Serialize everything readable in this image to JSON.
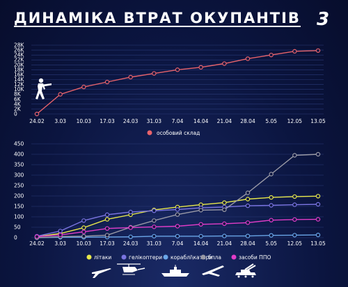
{
  "title": "ДИНАМІКА ВТРАТ ОКУПАНТІВ",
  "logo": "3",
  "colors": {
    "background": "#0b1540",
    "personnel": "#e8636b",
    "aircraft": "#e8e84a",
    "helicopters": "#7a74e0",
    "boats": "#6aa6e8",
    "drones": "#9a9aa6",
    "air_defense": "#e23cc8"
  },
  "chart_data": [
    {
      "type": "line",
      "x": [
        "24.02",
        "3.03",
        "10.03",
        "17.03",
        "24.03",
        "31.03",
        "7.04",
        "14.04",
        "21.04",
        "28.04",
        "5.05",
        "12.05",
        "13.05"
      ],
      "ylim": [
        0,
        28000
      ],
      "yticks": [
        "0",
        "2K",
        "4K",
        "6K",
        "8K",
        "10K",
        "12K",
        "14K",
        "16K",
        "18K",
        "20K",
        "22K",
        "24K",
        "26K",
        "28K"
      ],
      "series": [
        {
          "name": "особовий склад",
          "color": "#e8636b",
          "values": [
            0,
            8000,
            11000,
            13000,
            15000,
            16500,
            18000,
            19000,
            20500,
            22500,
            24000,
            25500,
            25800
          ]
        }
      ],
      "legend_position": "bottom-center",
      "icon": "soldier-icon"
    },
    {
      "type": "line",
      "x": [
        "24.02",
        "3.03",
        "10.03",
        "17.03",
        "24.03",
        "31.03",
        "7.04",
        "14.04",
        "21.04",
        "28.04",
        "5.05",
        "12.05",
        "13.05"
      ],
      "ylim": [
        0,
        450
      ],
      "yticks": [
        "0",
        "50",
        "100",
        "150",
        "200",
        "250",
        "300",
        "350",
        "400",
        "450"
      ],
      "series": [
        {
          "name": "літаки",
          "color": "#e8e84a",
          "values": [
            5,
            20,
            48,
            88,
            110,
            133,
            147,
            158,
            168,
            185,
            193,
            197,
            199
          ]
        },
        {
          "name": "гелікоптери",
          "color": "#7a74e0",
          "values": [
            7,
            32,
            82,
            110,
            123,
            129,
            135,
            143,
            147,
            153,
            155,
            158,
            160
          ]
        },
        {
          "name": "кораблі\\катери",
          "color": "#6aa6e8",
          "values": [
            0,
            2,
            2,
            3,
            4,
            7,
            7,
            7,
            8,
            8,
            11,
            12,
            13
          ]
        },
        {
          "name": "бпла",
          "color": "#9a9aa6",
          "values": [
            0,
            5,
            7,
            12,
            50,
            82,
            111,
            132,
            134,
            215,
            305,
            395,
            400
          ]
        },
        {
          "name": "засоби ППО",
          "color": "#e23cc8",
          "values": [
            5,
            13,
            28,
            44,
            48,
            52,
            55,
            64,
            67,
            72,
            84,
            87,
            88
          ]
        }
      ],
      "legend_position": "bottom-center",
      "icons": [
        "aircraft-icon",
        "helicopter-icon",
        "ship-icon",
        "drone-icon",
        "air-defense-icon"
      ]
    }
  ]
}
